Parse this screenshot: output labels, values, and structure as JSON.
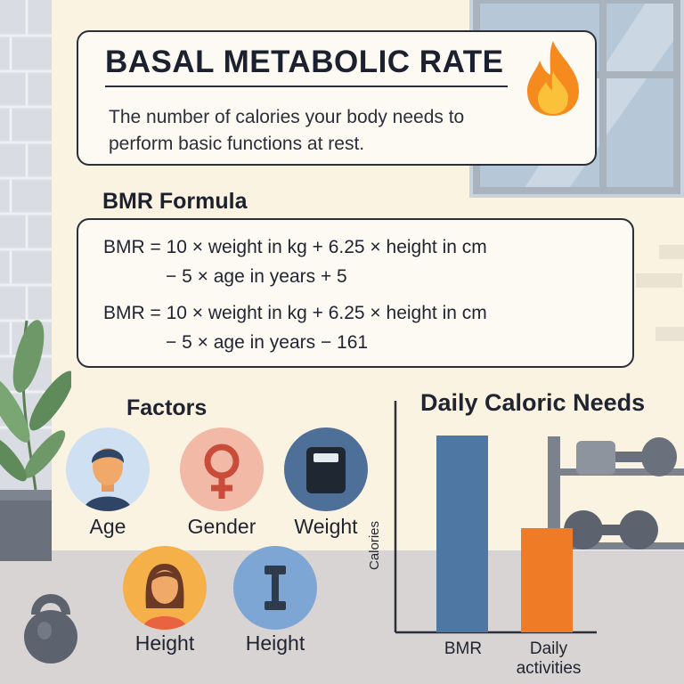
{
  "header": {
    "title": "BASAL METABOLIC RATE",
    "subtitle": "The number of calories your body needs to perform basic functions at rest.",
    "icon": "fire-icon"
  },
  "formula": {
    "section_title": "BMR Formula",
    "male_line1": "BMR = 10 × weight in kg + 6.25 × height in cm",
    "male_line2": "− 5 × age in years + 5",
    "female_line1": "BMR = 10 × weight in kg + 6.25 × height in cm",
    "female_line2": "− 5 × age in years − 161"
  },
  "factors": {
    "title": "Factors",
    "items": [
      {
        "label": "Age",
        "icon": "person-icon",
        "color": "#cfe0f2"
      },
      {
        "label": "Gender",
        "icon": "female-symbol-icon",
        "color": "#f2b9a6"
      },
      {
        "label": "Weight",
        "icon": "scale-icon",
        "color": "#4d6f98"
      },
      {
        "label": "Height",
        "icon": "woman-icon",
        "color": "#f5b04a"
      },
      {
        "label": "Height",
        "icon": "dumbbell-icon",
        "color": "#7ea6d4"
      }
    ]
  },
  "chart_data": {
    "type": "bar",
    "title": "Daily Caloric Needs",
    "ylabel": "Calories",
    "categories": [
      "BMR",
      "Daily activities"
    ],
    "values": [
      0.85,
      0.45
    ],
    "colors": [
      "#4f77a3",
      "#f07b26"
    ]
  }
}
